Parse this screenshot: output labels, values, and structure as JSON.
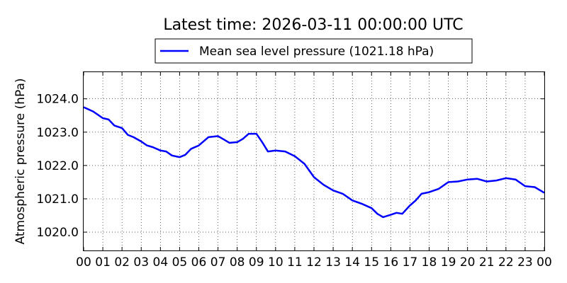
{
  "chart_data": {
    "type": "line",
    "title": "Latest time: 2026-03-11 00:00:00 UTC",
    "xlabel": "",
    "ylabel": "Atmospheric pressure (hPa)",
    "xlim": [
      0,
      24
    ],
    "ylim": [
      1019.45,
      1024.8
    ],
    "x_tick_values": [
      0,
      1,
      2,
      3,
      4,
      5,
      6,
      7,
      8,
      9,
      10,
      11,
      12,
      13,
      14,
      15,
      16,
      17,
      18,
      19,
      20,
      21,
      22,
      23,
      24
    ],
    "x_tick_labels": [
      "00",
      "01",
      "02",
      "03",
      "04",
      "05",
      "06",
      "07",
      "08",
      "09",
      "10",
      "11",
      "12",
      "13",
      "14",
      "15",
      "16",
      "17",
      "18",
      "19",
      "20",
      "21",
      "22",
      "23",
      "00"
    ],
    "y_tick_values": [
      1020.0,
      1021.0,
      1022.0,
      1023.0,
      1024.0
    ],
    "y_tick_labels": [
      "1020.0",
      "1021.0",
      "1022.0",
      "1023.0",
      "1024.0"
    ],
    "grid": true,
    "legend_position": "top-center",
    "series": [
      {
        "name": "Mean sea level pressure (1021.18 hPa)",
        "color": "#0000ff",
        "x": [
          0,
          0.5,
          1,
          1.3,
          1.6,
          2,
          2.3,
          2.6,
          3,
          3.3,
          3.6,
          4,
          4.3,
          4.6,
          5,
          5.3,
          5.6,
          6,
          6.5,
          7,
          7.3,
          7.6,
          8,
          8.3,
          8.6,
          9,
          9.3,
          9.6,
          10,
          10.5,
          11,
          11.5,
          12,
          12.5,
          13,
          13.5,
          14,
          14.5,
          15,
          15.3,
          15.6,
          16,
          16.3,
          16.6,
          17,
          17.3,
          17.6,
          18,
          18.5,
          19,
          19.5,
          20,
          20.5,
          21,
          21.5,
          22,
          22.5,
          23,
          23.5,
          24
        ],
        "y": [
          1023.75,
          1023.62,
          1023.42,
          1023.38,
          1023.2,
          1023.12,
          1022.92,
          1022.85,
          1022.72,
          1022.6,
          1022.55,
          1022.45,
          1022.42,
          1022.3,
          1022.25,
          1022.32,
          1022.5,
          1022.6,
          1022.85,
          1022.88,
          1022.78,
          1022.68,
          1022.7,
          1022.8,
          1022.95,
          1022.95,
          1022.7,
          1022.42,
          1022.45,
          1022.42,
          1022.28,
          1022.05,
          1021.65,
          1021.42,
          1021.25,
          1021.15,
          1020.95,
          1020.85,
          1020.72,
          1020.55,
          1020.45,
          1020.52,
          1020.58,
          1020.55,
          1020.8,
          1020.95,
          1021.15,
          1021.2,
          1021.3,
          1021.5,
          1021.52,
          1021.58,
          1021.6,
          1021.52,
          1021.55,
          1021.62,
          1021.58,
          1021.38,
          1021.35,
          1021.18
        ]
      }
    ]
  }
}
